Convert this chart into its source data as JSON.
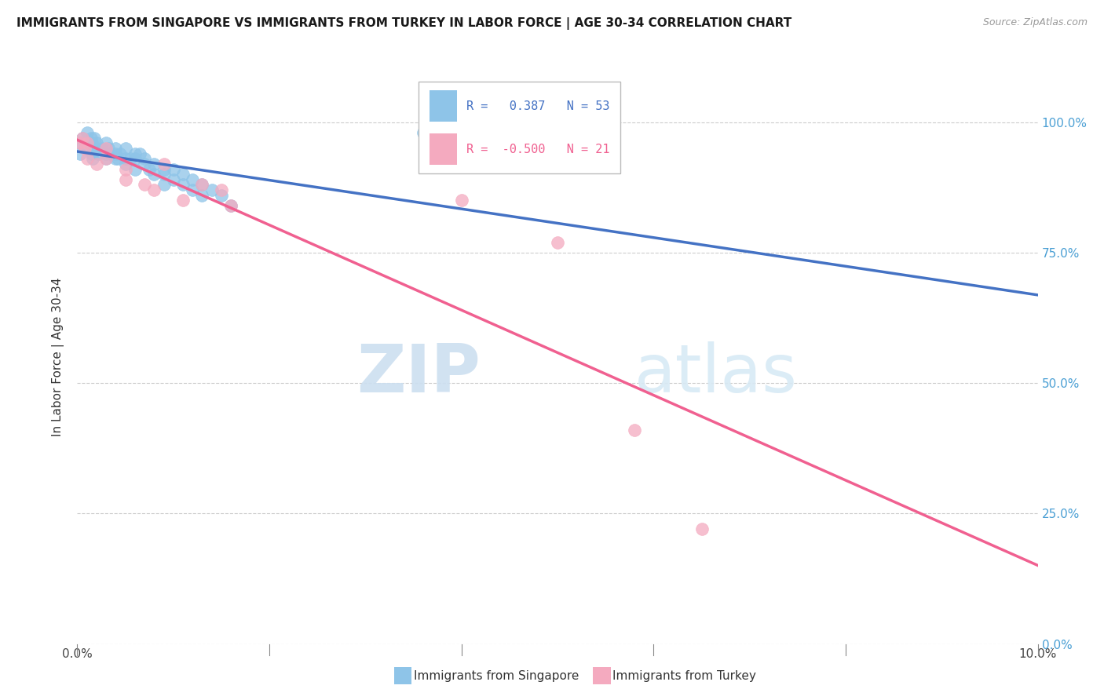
{
  "title": "IMMIGRANTS FROM SINGAPORE VS IMMIGRANTS FROM TURKEY IN LABOR FORCE | AGE 30-34 CORRELATION CHART",
  "source": "Source: ZipAtlas.com",
  "ylabel": "In Labor Force | Age 30-34",
  "legend_blue_label": "Immigrants from Singapore",
  "legend_pink_label": "Immigrants from Turkey",
  "legend_blue_R": "0.387",
  "legend_blue_N": "53",
  "legend_pink_R": "-0.500",
  "legend_pink_N": "21",
  "blue_color": "#8EC4E8",
  "pink_color": "#F4AABF",
  "blue_line_color": "#4472C4",
  "pink_line_color": "#F06090",
  "singapore_x": [
    0.0002,
    0.0003,
    0.0005,
    0.001,
    0.001,
    0.0012,
    0.0014,
    0.0015,
    0.0015,
    0.0016,
    0.0018,
    0.002,
    0.002,
    0.0022,
    0.0025,
    0.003,
    0.003,
    0.003,
    0.0032,
    0.0035,
    0.004,
    0.004,
    0.004,
    0.0042,
    0.0045,
    0.005,
    0.005,
    0.005,
    0.0055,
    0.006,
    0.006,
    0.006,
    0.0065,
    0.007,
    0.007,
    0.0075,
    0.008,
    0.008,
    0.009,
    0.009,
    0.009,
    0.01,
    0.01,
    0.011,
    0.011,
    0.012,
    0.012,
    0.013,
    0.013,
    0.014,
    0.015,
    0.016,
    0.036
  ],
  "singapore_y": [
    0.96,
    0.94,
    0.97,
    0.95,
    0.98,
    0.96,
    0.97,
    0.94,
    0.96,
    0.93,
    0.97,
    0.95,
    0.96,
    0.94,
    0.95,
    0.93,
    0.94,
    0.96,
    0.95,
    0.94,
    0.93,
    0.94,
    0.95,
    0.93,
    0.94,
    0.92,
    0.93,
    0.95,
    0.93,
    0.94,
    0.91,
    0.93,
    0.94,
    0.92,
    0.93,
    0.91,
    0.9,
    0.92,
    0.91,
    0.9,
    0.88,
    0.89,
    0.91,
    0.9,
    0.88,
    0.87,
    0.89,
    0.88,
    0.86,
    0.87,
    0.86,
    0.84,
    0.98
  ],
  "turkey_x": [
    0.0003,
    0.0005,
    0.0008,
    0.001,
    0.001,
    0.002,
    0.003,
    0.003,
    0.005,
    0.005,
    0.007,
    0.008,
    0.009,
    0.011,
    0.013,
    0.015,
    0.016,
    0.04,
    0.05,
    0.058,
    0.065
  ],
  "turkey_y": [
    0.96,
    0.97,
    0.95,
    0.93,
    0.96,
    0.92,
    0.93,
    0.95,
    0.91,
    0.89,
    0.88,
    0.87,
    0.92,
    0.85,
    0.88,
    0.87,
    0.84,
    0.85,
    0.77,
    0.41,
    0.22
  ],
  "xlim": [
    0.0,
    0.1
  ],
  "ylim": [
    0.0,
    1.1
  ],
  "yticks": [
    0.0,
    0.25,
    0.5,
    0.75,
    1.0
  ],
  "xtick_positions": [
    0.0,
    0.02,
    0.04,
    0.06,
    0.08,
    0.1
  ]
}
